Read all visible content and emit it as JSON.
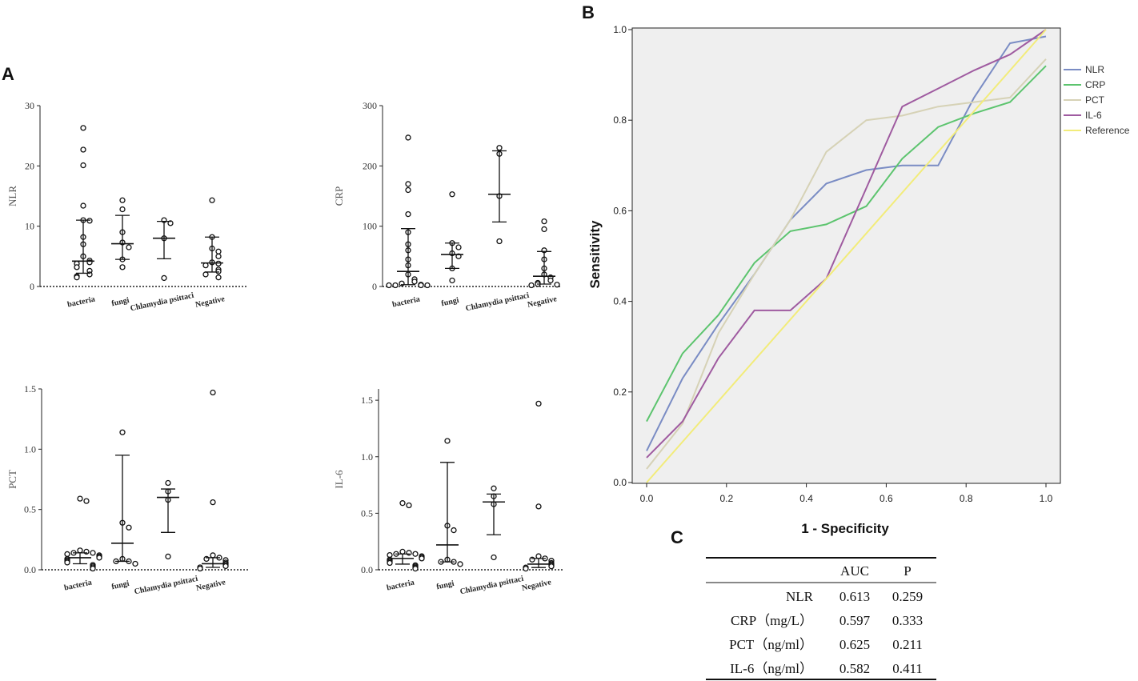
{
  "figure": {
    "panel_a": "A",
    "panel_b": "B",
    "panel_c": "C"
  },
  "chart_data": [
    {
      "type": "scatter",
      "name": "nlr-dot-plot",
      "ylabel": "NLR",
      "ylim": [
        0,
        30
      ],
      "yticks": [
        0,
        10,
        20,
        30
      ],
      "categories": [
        "bacteria",
        "fungi",
        "Chlamydia psittaci",
        "Negative"
      ],
      "groups": [
        {
          "points": [
            26.3,
            22.7,
            20.1,
            13.4,
            11.0,
            10.9,
            8.2,
            7.0,
            5.0,
            4.3,
            4.0,
            3.8,
            3.2,
            2.6,
            2.0,
            1.7,
            1.5
          ],
          "median": 4.2,
          "q1": 2.2,
          "q3": 11.0
        },
        {
          "points": [
            14.3,
            12.8,
            9.0,
            7.3,
            6.5,
            4.5,
            3.2
          ],
          "median": 7.1,
          "q1": 4.5,
          "q3": 11.8
        },
        {
          "points": [
            11.0,
            10.5,
            8.0,
            1.4
          ],
          "median": 8.0,
          "q1": 4.6,
          "q3": 10.8
        },
        {
          "points": [
            14.3,
            8.2,
            6.3,
            5.8,
            5.0,
            4.0,
            3.8,
            3.5,
            2.8,
            2.5,
            2.0,
            1.5
          ],
          "median": 3.9,
          "q1": 2.4,
          "q3": 8.2
        }
      ]
    },
    {
      "type": "scatter",
      "name": "crp-dot-plot",
      "ylabel": "CRP",
      "ylim": [
        0,
        300
      ],
      "yticks": [
        0,
        100,
        200,
        300
      ],
      "categories": [
        "bacteria",
        "fungi",
        "Chlamydia psittaci",
        "Negative"
      ],
      "groups": [
        {
          "points": [
            247,
            170,
            160,
            120,
            90,
            70,
            60,
            45,
            35,
            20,
            12,
            8,
            5,
            3,
            2,
            2,
            2,
            2
          ],
          "median": 25,
          "q1": 3,
          "q3": 96
        },
        {
          "points": [
            153,
            72,
            65,
            55,
            50,
            30,
            10
          ],
          "median": 53,
          "q1": 30,
          "q3": 72
        },
        {
          "points": [
            230,
            220,
            150,
            75
          ],
          "median": 153,
          "q1": 107,
          "q3": 225
        },
        {
          "points": [
            108,
            95,
            60,
            45,
            30,
            20,
            15,
            10,
            6,
            4,
            3,
            2
          ],
          "median": 17,
          "q1": 4,
          "q3": 58
        }
      ]
    },
    {
      "type": "scatter",
      "name": "pct-dot-plot",
      "ylabel": "PCT",
      "ylim": [
        0,
        1.5
      ],
      "yticks": [
        "0.0",
        "0.5",
        "1.0",
        "1.5"
      ],
      "categories": [
        "bacteria",
        "fungi",
        "Chlamydia psittaci",
        "Negative"
      ],
      "groups": [
        {
          "points": [
            0.59,
            0.57,
            0.16,
            0.15,
            0.14,
            0.14,
            0.13,
            0.12,
            0.11,
            0.1,
            0.09,
            0.08,
            0.07,
            0.06,
            0.04,
            0.03,
            0.02,
            0.01
          ],
          "median": 0.1,
          "q1": 0.05,
          "q3": 0.14
        },
        {
          "points": [
            1.14,
            0.39,
            0.35,
            0.09,
            0.07,
            0.07,
            0.05
          ],
          "median": 0.22,
          "q1": 0.07,
          "q3": 0.95
        },
        {
          "points": [
            0.72,
            0.65,
            0.58,
            0.11
          ],
          "median": 0.6,
          "q1": 0.31,
          "q3": 0.67
        },
        {
          "points": [
            1.47,
            0.56,
            0.12,
            0.1,
            0.09,
            0.08,
            0.06,
            0.05,
            0.04,
            0.03,
            0.02,
            0.01
          ],
          "median": 0.05,
          "q1": 0.02,
          "q3": 0.1
        }
      ]
    },
    {
      "type": "scatter",
      "name": "il6-dot-plot",
      "ylabel": "IL-6",
      "ylim": [
        0,
        1.6
      ],
      "yticks": [
        "0.0",
        "0.5",
        "1.0",
        "1.5"
      ],
      "categories": [
        "bacteria",
        "fungi",
        "Chlamydia psittaci",
        "Negative"
      ],
      "groups": [
        {
          "points": [
            0.59,
            0.57,
            0.16,
            0.15,
            0.14,
            0.14,
            0.13,
            0.12,
            0.11,
            0.1,
            0.09,
            0.08,
            0.07,
            0.06,
            0.04,
            0.03,
            0.02,
            0.01
          ],
          "median": 0.1,
          "q1": 0.05,
          "q3": 0.14
        },
        {
          "points": [
            1.14,
            0.39,
            0.35,
            0.09,
            0.07,
            0.07,
            0.05
          ],
          "median": 0.22,
          "q1": 0.07,
          "q3": 0.95
        },
        {
          "points": [
            0.72,
            0.65,
            0.58,
            0.11
          ],
          "median": 0.6,
          "q1": 0.31,
          "q3": 0.67
        },
        {
          "points": [
            1.47,
            0.56,
            0.12,
            0.1,
            0.09,
            0.08,
            0.06,
            0.05,
            0.04,
            0.03,
            0.02,
            0.01
          ],
          "median": 0.05,
          "q1": 0.02,
          "q3": 0.1
        }
      ]
    },
    {
      "type": "line",
      "name": "roc-curve",
      "xlabel": "1 - Specificity",
      "ylabel": "Sensitivity",
      "xlim": [
        0,
        1
      ],
      "ylim": [
        0,
        1
      ],
      "ticks": [
        "0.0",
        "0.2",
        "0.4",
        "0.6",
        "0.8",
        "1.0"
      ],
      "series": [
        {
          "name": "NLR",
          "color": "#7a8cc4",
          "x": [
            0,
            0.09,
            0.18,
            0.27,
            0.36,
            0.45,
            0.55,
            0.64,
            0.73,
            0.82,
            0.91,
            1.0
          ],
          "y": [
            0.07,
            0.23,
            0.35,
            0.46,
            0.58,
            0.66,
            0.69,
            0.7,
            0.7,
            0.85,
            0.97,
            0.985
          ]
        },
        {
          "name": "CRP",
          "color": "#5cc46e",
          "x": [
            0,
            0.09,
            0.18,
            0.27,
            0.36,
            0.45,
            0.55,
            0.64,
            0.73,
            0.82,
            0.91,
            1.0
          ],
          "y": [
            0.135,
            0.285,
            0.37,
            0.485,
            0.555,
            0.57,
            0.61,
            0.715,
            0.785,
            0.815,
            0.84,
            0.92
          ]
        },
        {
          "name": "PCT",
          "color": "#d6d2b6",
          "x": [
            0,
            0.09,
            0.18,
            0.27,
            0.36,
            0.45,
            0.55,
            0.64,
            0.73,
            0.82,
            0.91,
            1.0
          ],
          "y": [
            0.03,
            0.13,
            0.33,
            0.46,
            0.58,
            0.73,
            0.8,
            0.81,
            0.83,
            0.84,
            0.85,
            0.935
          ]
        },
        {
          "name": "IL-6",
          "color": "#9f5ba0",
          "x": [
            0,
            0.09,
            0.18,
            0.27,
            0.36,
            0.45,
            0.55,
            0.64,
            0.73,
            0.82,
            0.91,
            1.0
          ],
          "y": [
            0.055,
            0.135,
            0.275,
            0.38,
            0.38,
            0.45,
            0.65,
            0.83,
            0.87,
            0.91,
            0.945,
            1.0
          ]
        },
        {
          "name": "Reference",
          "color": "#f2ec7a",
          "x": [
            0,
            1
          ],
          "y": [
            0,
            1
          ]
        }
      ]
    },
    {
      "type": "table",
      "name": "auc-table",
      "columns": [
        "",
        "AUC",
        "P"
      ],
      "rows": [
        [
          "NLR",
          "0.613",
          "0.259"
        ],
        [
          "CRP（mg/L）",
          "0.597",
          "0.333"
        ],
        [
          "PCT（ng/ml）",
          "0.625",
          "0.211"
        ],
        [
          "IL-6（ng/ml）",
          "0.582",
          "0.411"
        ]
      ]
    }
  ]
}
